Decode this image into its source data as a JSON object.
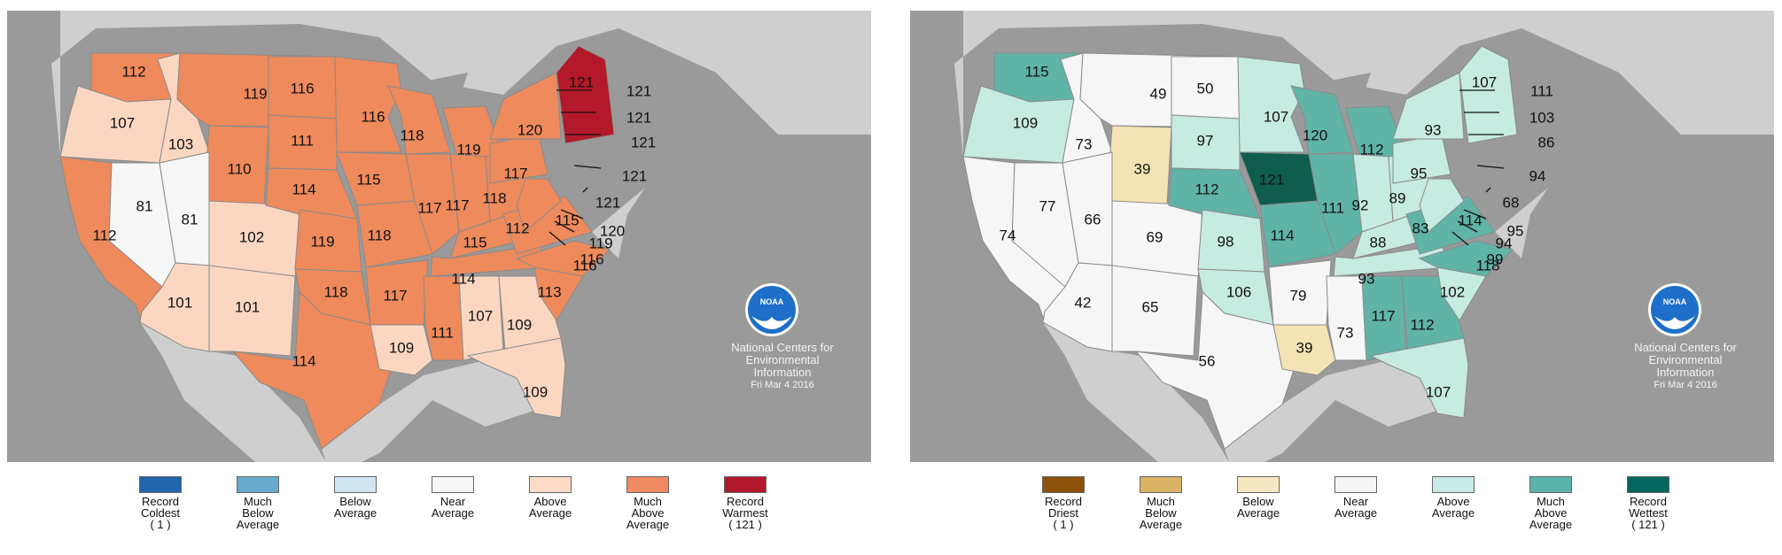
{
  "maps": [
    {
      "id": "temperature",
      "colors": {
        "ocean": "#9a9a9a",
        "land": "#cfcfcf",
        "near": "#f6f6f6",
        "above": "#fbd7c2",
        "much_above": "#ee8a5c",
        "record": "#b3192a"
      },
      "states": [
        {
          "name": "WA",
          "cls": "much_above",
          "value": "112"
        },
        {
          "name": "OR",
          "cls": "above",
          "value": "107"
        },
        {
          "name": "CA",
          "cls": "much_above",
          "value": "112"
        },
        {
          "name": "ID",
          "cls": "above",
          "value": "103"
        },
        {
          "name": "NV",
          "cls": "near",
          "value": "81"
        },
        {
          "name": "MT",
          "cls": "much_above",
          "value": "119"
        },
        {
          "name": "WY",
          "cls": "much_above",
          "value": "110"
        },
        {
          "name": "UT",
          "cls": "near",
          "value": "81"
        },
        {
          "name": "CO",
          "cls": "above",
          "value": "102"
        },
        {
          "name": "AZ",
          "cls": "above",
          "value": "101"
        },
        {
          "name": "NM",
          "cls": "above",
          "value": "101"
        },
        {
          "name": "ND",
          "cls": "much_above",
          "value": "116"
        },
        {
          "name": "SD",
          "cls": "much_above",
          "value": "111"
        },
        {
          "name": "NE",
          "cls": "much_above",
          "value": "114"
        },
        {
          "name": "KS",
          "cls": "much_above",
          "value": "119"
        },
        {
          "name": "OK",
          "cls": "much_above",
          "value": "118"
        },
        {
          "name": "TX",
          "cls": "much_above",
          "value": "114"
        },
        {
          "name": "MN",
          "cls": "much_above",
          "value": "116"
        },
        {
          "name": "IA",
          "cls": "much_above",
          "value": "115"
        },
        {
          "name": "MO",
          "cls": "much_above",
          "value": "118"
        },
        {
          "name": "AR",
          "cls": "much_above",
          "value": "117"
        },
        {
          "name": "LA",
          "cls": "above",
          "value": "109"
        },
        {
          "name": "WI",
          "cls": "much_above",
          "value": "118"
        },
        {
          "name": "IL",
          "cls": "much_above",
          "value": "117"
        },
        {
          "name": "MI",
          "cls": "much_above",
          "value": "119"
        },
        {
          "name": "IN",
          "cls": "much_above",
          "value": "117"
        },
        {
          "name": "OH",
          "cls": "much_above",
          "value": "118"
        },
        {
          "name": "KY",
          "cls": "much_above",
          "value": "115"
        },
        {
          "name": "TN",
          "cls": "much_above",
          "value": "114"
        },
        {
          "name": "MS",
          "cls": "much_above",
          "value": "111"
        },
        {
          "name": "AL",
          "cls": "above",
          "value": "107"
        },
        {
          "name": "GA",
          "cls": "above",
          "value": "109"
        },
        {
          "name": "FL",
          "cls": "above",
          "value": "109"
        },
        {
          "name": "SC",
          "cls": "much_above",
          "value": "113"
        },
        {
          "name": "NC",
          "cls": "much_above",
          "value": "116"
        },
        {
          "name": "VA",
          "cls": "much_above",
          "value": "115"
        },
        {
          "name": "WV",
          "cls": "much_above",
          "value": "112"
        },
        {
          "name": "PA",
          "cls": "much_above",
          "value": "117"
        },
        {
          "name": "NY",
          "cls": "much_above",
          "value": "120"
        },
        {
          "name": "NE-region",
          "cls": "record",
          "value": "121"
        }
      ],
      "callouts": [
        "121",
        "121",
        "121",
        "121",
        "121",
        "120",
        "119",
        "116"
      ],
      "noaa": {
        "logo": "NOAA",
        "line1": "National Centers for",
        "line2": "Environmental",
        "line3": "Information",
        "date": "Fri Mar  4 2016"
      },
      "legend": [
        {
          "color": "#2166ac",
          "label": [
            "Record",
            "Coldest",
            "( 1 )"
          ]
        },
        {
          "color": "#67a9cf",
          "label": [
            "Much",
            "Below",
            "Average"
          ]
        },
        {
          "color": "#d1e5f0",
          "label": [
            "Below",
            "Average"
          ]
        },
        {
          "color": "#f7f7f7",
          "label": [
            "Near",
            "Average"
          ]
        },
        {
          "color": "#fddbc7",
          "label": [
            "Above",
            "Average"
          ]
        },
        {
          "color": "#ef8a62",
          "label": [
            "Much",
            "Above",
            "Average"
          ]
        },
        {
          "color": "#b2182b",
          "label": [
            "Record",
            "Warmest",
            "( 121 )"
          ]
        }
      ]
    },
    {
      "id": "precipitation",
      "colors": {
        "ocean": "#9a9a9a",
        "land": "#cfcfcf",
        "near": "#f6f6f6",
        "below": "#f4e3b5",
        "above": "#c6ebe1",
        "much_above": "#5fb4a6",
        "record": "#0f5e4d"
      },
      "states": [
        {
          "name": "WA",
          "cls": "much_above",
          "value": "115"
        },
        {
          "name": "OR",
          "cls": "above",
          "value": "109"
        },
        {
          "name": "CA",
          "cls": "near",
          "value": "74"
        },
        {
          "name": "ID",
          "cls": "near",
          "value": "73"
        },
        {
          "name": "NV",
          "cls": "near",
          "value": "77"
        },
        {
          "name": "MT",
          "cls": "near",
          "value": "49"
        },
        {
          "name": "WY",
          "cls": "below",
          "value": "39"
        },
        {
          "name": "UT",
          "cls": "near",
          "value": "66"
        },
        {
          "name": "CO",
          "cls": "near",
          "value": "69"
        },
        {
          "name": "AZ",
          "cls": "near",
          "value": "42"
        },
        {
          "name": "NM",
          "cls": "near",
          "value": "65"
        },
        {
          "name": "ND",
          "cls": "near",
          "value": "50"
        },
        {
          "name": "SD",
          "cls": "above",
          "value": "97"
        },
        {
          "name": "NE",
          "cls": "much_above",
          "value": "112"
        },
        {
          "name": "KS",
          "cls": "above",
          "value": "98"
        },
        {
          "name": "OK",
          "cls": "above",
          "value": "106"
        },
        {
          "name": "TX",
          "cls": "near",
          "value": "56"
        },
        {
          "name": "MN",
          "cls": "above",
          "value": "107"
        },
        {
          "name": "IA",
          "cls": "record",
          "value": "121"
        },
        {
          "name": "MO",
          "cls": "much_above",
          "value": "114"
        },
        {
          "name": "AR",
          "cls": "near",
          "value": "79"
        },
        {
          "name": "LA",
          "cls": "below",
          "value": "39"
        },
        {
          "name": "WI",
          "cls": "much_above",
          "value": "120"
        },
        {
          "name": "IL",
          "cls": "much_above",
          "value": "111"
        },
        {
          "name": "MI",
          "cls": "much_above",
          "value": "112"
        },
        {
          "name": "IN",
          "cls": "above",
          "value": "92"
        },
        {
          "name": "OH",
          "cls": "above",
          "value": "89"
        },
        {
          "name": "KY",
          "cls": "above",
          "value": "88"
        },
        {
          "name": "TN",
          "cls": "above",
          "value": "93"
        },
        {
          "name": "MS",
          "cls": "near",
          "value": "73"
        },
        {
          "name": "AL",
          "cls": "much_above",
          "value": "117"
        },
        {
          "name": "GA",
          "cls": "much_above",
          "value": "112"
        },
        {
          "name": "FL",
          "cls": "above",
          "value": "107"
        },
        {
          "name": "SC",
          "cls": "above",
          "value": "102"
        },
        {
          "name": "NC",
          "cls": "much_above",
          "value": "118"
        },
        {
          "name": "VA",
          "cls": "much_above",
          "value": "114"
        },
        {
          "name": "WV",
          "cls": "above",
          "value": "83"
        },
        {
          "name": "PA",
          "cls": "above",
          "value": "95"
        },
        {
          "name": "NY",
          "cls": "above",
          "value": "93"
        },
        {
          "name": "NE-region",
          "cls": "above",
          "value": "107"
        }
      ],
      "callouts": [
        "111",
        "103",
        "86",
        "94",
        "68",
        "95",
        "94",
        "99"
      ],
      "noaa": {
        "logo": "NOAA",
        "line1": "National Centers for",
        "line2": "Environmental",
        "line3": "Information",
        "date": "Fri Mar  4 2016"
      },
      "legend": [
        {
          "color": "#8c510a",
          "label": [
            "Record",
            "Driest",
            "( 1 )"
          ]
        },
        {
          "color": "#d8b365",
          "label": [
            "Much",
            "Below",
            "Average"
          ]
        },
        {
          "color": "#f6e8c3",
          "label": [
            "Below",
            "Average"
          ]
        },
        {
          "color": "#f5f5f5",
          "label": [
            "Near",
            "Average"
          ]
        },
        {
          "color": "#c7eae5",
          "label": [
            "Above",
            "Average"
          ]
        },
        {
          "color": "#5ab4ac",
          "label": [
            "Much",
            "Above",
            "Average"
          ]
        },
        {
          "color": "#01665e",
          "label": [
            "Record",
            "Wettest",
            "( 121 )"
          ]
        }
      ]
    }
  ]
}
